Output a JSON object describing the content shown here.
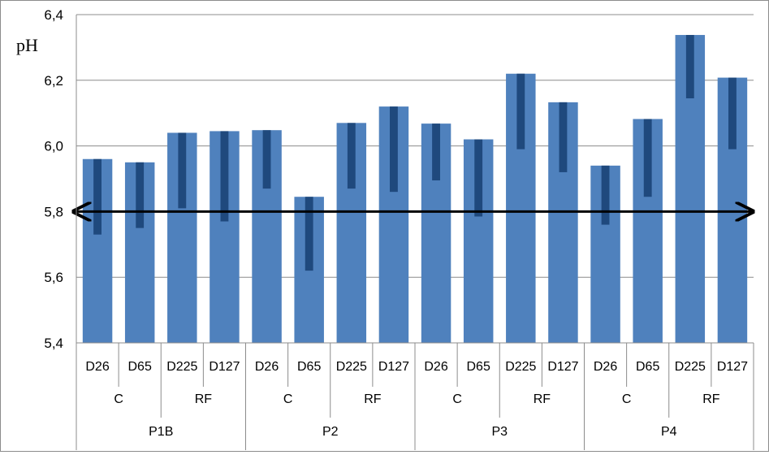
{
  "chart_data": {
    "type": "bar",
    "ylabel": "pH",
    "ylim": [
      5.4,
      6.4
    ],
    "yticks": [
      "5,4",
      "5,6",
      "5,8",
      "6,0",
      "6,2",
      "6,4"
    ],
    "grid": true,
    "reference_line": 5.8,
    "groups": [
      {
        "label": "P1B",
        "subgroups": [
          {
            "label": "C",
            "bars": [
              {
                "label": "D26",
                "value": 5.96,
                "low": 5.73
              },
              {
                "label": "D65",
                "value": 5.95,
                "low": 5.75
              }
            ]
          },
          {
            "label": "RF",
            "bars": [
              {
                "label": "D225",
                "value": 6.04,
                "low": 5.81
              },
              {
                "label": "D127",
                "value": 6.045,
                "low": 5.77
              }
            ]
          }
        ]
      },
      {
        "label": "P2",
        "subgroups": [
          {
            "label": "C",
            "bars": [
              {
                "label": "D26",
                "value": 6.048,
                "low": 5.87
              },
              {
                "label": "D65",
                "value": 5.845,
                "low": 5.62
              }
            ]
          },
          {
            "label": "RF",
            "bars": [
              {
                "label": "D225",
                "value": 6.07,
                "low": 5.87
              },
              {
                "label": "D127",
                "value": 6.12,
                "low": 5.86
              }
            ]
          }
        ]
      },
      {
        "label": "P3",
        "subgroups": [
          {
            "label": "C",
            "bars": [
              {
                "label": "D26",
                "value": 6.068,
                "low": 5.895
              },
              {
                "label": "D65",
                "value": 6.02,
                "low": 5.785
              }
            ]
          },
          {
            "label": "RF",
            "bars": [
              {
                "label": "D225",
                "value": 6.22,
                "low": 5.99
              },
              {
                "label": "D127",
                "value": 6.133,
                "low": 5.92
              }
            ]
          }
        ]
      },
      {
        "label": "P4",
        "subgroups": [
          {
            "label": "C",
            "bars": [
              {
                "label": "D26",
                "value": 5.94,
                "low": 5.76
              },
              {
                "label": "D65",
                "value": 6.082,
                "low": 5.845
              }
            ]
          },
          {
            "label": "RF",
            "bars": [
              {
                "label": "D225",
                "value": 6.338,
                "low": 6.145
              },
              {
                "label": "D127",
                "value": 6.208,
                "low": 5.99
              }
            ]
          }
        ]
      }
    ],
    "colors": {
      "bar": "#4f81bd",
      "range": "#1f497d",
      "grid": "#8c8c8c",
      "axis": "#8c8c8c",
      "reference_line": "#000000"
    }
  }
}
